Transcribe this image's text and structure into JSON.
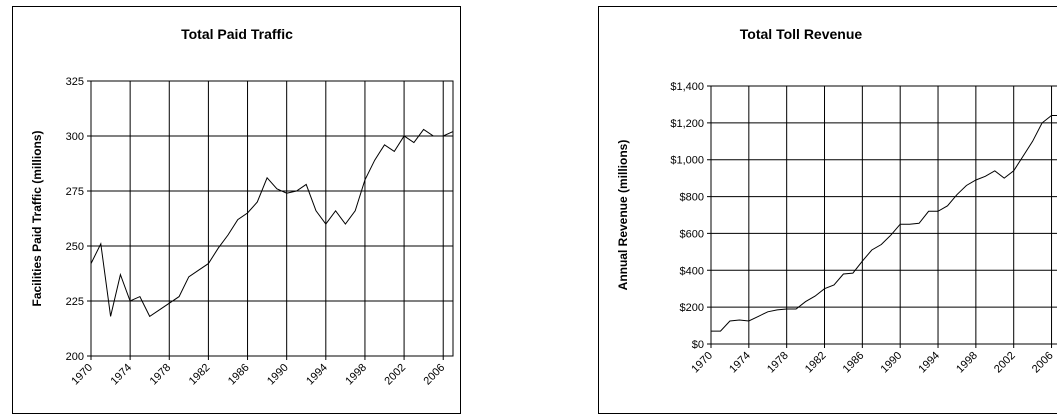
{
  "chart_data": [
    {
      "type": "line",
      "title": "Total Paid Traffic",
      "xlabel": "",
      "ylabel": "Facilities Paid Traffic (millions)",
      "ylim": [
        200,
        325
      ],
      "yticks": [
        200,
        225,
        250,
        275,
        300,
        325
      ],
      "ytick_labels": [
        "200",
        "225",
        "250",
        "275",
        "300",
        "325"
      ],
      "xlim": [
        1970,
        2007
      ],
      "xtick_labels": [
        "1970",
        "1974",
        "1978",
        "1982",
        "1986",
        "1990",
        "1994",
        "1998",
        "2002",
        "2006"
      ],
      "grid": true,
      "legend": "none",
      "x": [
        1970,
        1971,
        1972,
        1973,
        1974,
        1975,
        1976,
        1977,
        1978,
        1979,
        1980,
        1981,
        1982,
        1983,
        1984,
        1985,
        1986,
        1987,
        1988,
        1989,
        1990,
        1991,
        1992,
        1993,
        1994,
        1995,
        1996,
        1997,
        1998,
        1999,
        2000,
        2001,
        2002,
        2003,
        2004,
        2005,
        2006,
        2007
      ],
      "values": [
        242,
        251,
        218,
        237,
        225,
        227,
        218,
        221,
        224,
        227,
        236,
        239,
        242,
        249,
        255,
        262,
        265,
        270,
        281,
        276,
        274,
        275,
        278,
        266,
        260,
        266,
        260,
        266,
        280,
        289,
        296,
        293,
        300,
        297,
        303,
        300,
        300,
        302
      ]
    },
    {
      "type": "line",
      "title": "Total Toll Revenue",
      "xlabel": "",
      "ylabel": "Annual Revenue (millions)",
      "ylim": [
        0,
        1400
      ],
      "yticks": [
        0,
        200,
        400,
        600,
        800,
        1000,
        1200,
        1400
      ],
      "ytick_labels": [
        "$0",
        "$200",
        "$400",
        "$600",
        "$800",
        "$1,000",
        "$1,200",
        "$1,400"
      ],
      "xlim": [
        1970,
        2007
      ],
      "xtick_labels": [
        "1970",
        "1974",
        "1978",
        "1982",
        "1986",
        "1990",
        "1994",
        "1998",
        "2002",
        "2006"
      ],
      "grid": true,
      "legend": "none",
      "x": [
        1970,
        1971,
        1972,
        1973,
        1974,
        1975,
        1976,
        1977,
        1978,
        1979,
        1980,
        1981,
        1982,
        1983,
        1984,
        1985,
        1986,
        1987,
        1988,
        1989,
        1990,
        1991,
        1992,
        1993,
        1994,
        1995,
        1996,
        1997,
        1998,
        1999,
        2000,
        2001,
        2002,
        2003,
        2004,
        2005,
        2006,
        2007
      ],
      "values": [
        70,
        70,
        125,
        130,
        125,
        150,
        175,
        185,
        190,
        190,
        230,
        260,
        300,
        320,
        380,
        385,
        450,
        510,
        540,
        590,
        650,
        650,
        655,
        720,
        720,
        750,
        810,
        860,
        890,
        910,
        940,
        900,
        940,
        1020,
        1100,
        1200,
        1240,
        1240
      ]
    }
  ]
}
